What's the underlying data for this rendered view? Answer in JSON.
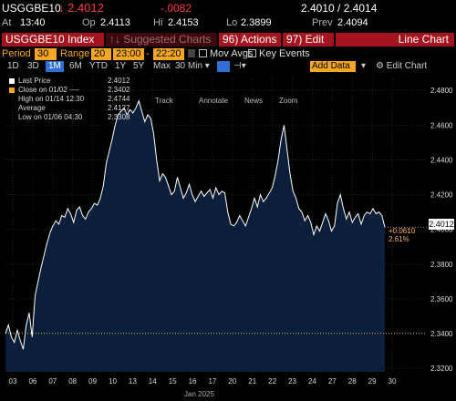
{
  "header": {
    "ticker": "USGGBE10",
    "last_price": "↓ 2.4012",
    "change": "-.0082",
    "bid_ask": "2.4010 / 2.4014",
    "at_label": "At",
    "at_time": "13:40",
    "open_label": "Op",
    "open": "2.4113",
    "high_label": "Hi",
    "high": "2.4153",
    "low_label": "Lo",
    "low": "2.3899",
    "prev_label": "Prev",
    "prev": "2.4094"
  },
  "toolbar": {
    "index_label": "USGGBE10 Index",
    "suggested_label": "↑↓ Suggested Charts",
    "actions_label": "96) Actions ▾",
    "edit_label": "97) Edit ▾",
    "line_chart_label": "Line Chart"
  },
  "controls": {
    "period_label": "Period",
    "period_value": "30",
    "range_label": "Range",
    "range_days": "20",
    "range_from": "23:00",
    "range_sep": "-",
    "range_to": "22:20",
    "mov_avgs_label": "Mov Avgs",
    "key_events_label": "Key Events"
  },
  "timeframes": {
    "items": [
      "1D",
      "3D",
      "1M",
      "6M",
      "YTD",
      "1Y",
      "5Y",
      "Max"
    ],
    "selected": "1M",
    "interval": "30 Min ▾",
    "add_data": "Add Data",
    "edit_chart": "⚙ Edit Chart"
  },
  "chart_tools": {
    "track": "Track",
    "annotate": "Annotate",
    "news": "News",
    "zoom": "Zoom"
  },
  "legend": {
    "last_price_label": "Last Price",
    "last_price_value": "2.4012",
    "close_label": "Close on 01/02 ----",
    "close_value": "2.3402",
    "high_label": "High on 01/14 12:30",
    "high_value": "2.4744",
    "average_label": "Average",
    "average_value": "2.4127",
    "low_label": "Low on 01/06 04:30",
    "low_value": "2.3308"
  },
  "tags": {
    "last": "2.4012",
    "change": "+0.0610",
    "change_pct": "2.61%"
  },
  "colors": {
    "area_fill": "#0c1f3a",
    "line": "#ffffff",
    "dotted_ref": "#e0c030",
    "up_accent": "#ff3b3b",
    "orange": "#f5a623"
  },
  "chart_data": {
    "type": "area",
    "title": "",
    "xlabel": "Jan 2025",
    "ylabel": "",
    "x_ticks": [
      "03",
      "06",
      "07",
      "08",
      "09",
      "10",
      "13",
      "14",
      "15",
      "16",
      "17",
      "20",
      "21",
      "22",
      "23",
      "24",
      "27",
      "28",
      "29",
      "30"
    ],
    "y_ticks": [
      2.32,
      2.34,
      2.36,
      2.38,
      2.4,
      2.42,
      2.44,
      2.46,
      2.48
    ],
    "ylim": [
      2.318,
      2.488
    ],
    "grid": true,
    "reference_line": 2.3402,
    "series": [
      {
        "values": [
          2.34,
          2.345,
          2.338,
          2.335,
          2.342,
          2.336,
          2.331,
          2.345,
          2.352,
          2.338,
          2.362,
          2.37,
          2.378,
          2.385,
          2.392,
          2.398,
          2.402,
          2.405,
          2.403,
          2.408,
          2.407,
          2.412,
          2.409,
          2.404,
          2.411,
          2.413,
          2.408,
          2.406,
          2.41,
          2.412,
          2.415,
          2.414,
          2.418,
          2.425,
          2.438,
          2.445,
          2.452,
          2.46,
          2.466,
          2.468,
          2.47,
          2.466,
          2.469,
          2.467,
          2.47,
          2.474,
          2.468,
          2.462,
          2.466,
          2.464,
          2.455,
          2.44,
          2.428,
          2.432,
          2.43,
          2.425,
          2.42,
          2.422,
          2.43,
          2.424,
          2.418,
          2.421,
          2.426,
          2.42,
          2.416,
          2.419,
          2.422,
          2.419,
          2.421,
          2.423,
          2.418,
          2.424,
          2.42,
          2.422,
          2.421,
          2.41,
          2.403,
          2.402,
          2.404,
          2.408,
          2.405,
          2.402,
          2.407,
          2.412,
          2.418,
          2.413,
          2.42,
          2.416,
          2.418,
          2.421,
          2.424,
          2.431,
          2.44,
          2.452,
          2.46,
          2.446,
          2.432,
          2.422,
          2.418,
          2.412,
          2.41,
          2.405,
          2.408,
          2.404,
          2.397,
          2.402,
          2.399,
          2.404,
          2.409,
          2.405,
          2.399,
          2.402,
          2.415,
          2.42,
          2.412,
          2.406,
          2.41,
          2.404,
          2.407,
          2.409,
          2.403,
          2.408,
          2.41,
          2.409,
          2.412,
          2.409,
          2.41,
          2.408,
          2.4012
        ]
      }
    ]
  }
}
